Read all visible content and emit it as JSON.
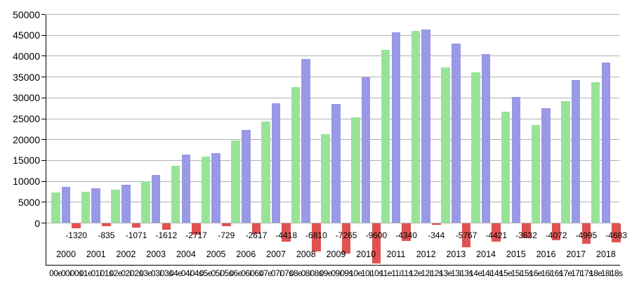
{
  "chart_data": {
    "type": "bar",
    "title": "",
    "xlabel": "",
    "ylabel": "",
    "ylim": [
      -10000,
      50000
    ],
    "grid": true,
    "legend": "none",
    "yticks": [
      0,
      5000,
      10000,
      15000,
      20000,
      25000,
      30000,
      35000,
      40000,
      45000,
      50000
    ],
    "ytick_labels": [
      "0",
      "5000",
      "10000",
      "15000",
      "20000",
      "25000",
      "30000",
      "35000",
      "40000",
      "45000",
      "50000"
    ],
    "years": [
      "2000",
      "2001",
      "2002",
      "2003",
      "2004",
      "2005",
      "2006",
      "2007",
      "2008",
      "2009",
      "2010",
      "2011",
      "2012",
      "2013",
      "2014",
      "2015",
      "2016",
      "2017",
      "2018"
    ],
    "bar_tick_labels": [
      "00e",
      "00i",
      "00s",
      "01e",
      "01i",
      "01s",
      "02e",
      "02i",
      "02s",
      "03e",
      "03i",
      "03s",
      "04e",
      "04i",
      "04s",
      "05e",
      "05i",
      "05s",
      "06e",
      "06i",
      "06s",
      "07e",
      "07i",
      "07s",
      "08e",
      "08i",
      "08s",
      "09e",
      "09i",
      "09s",
      "10e",
      "10i",
      "10s",
      "11e",
      "11i",
      "11s",
      "12e",
      "12i",
      "12s",
      "13e",
      "13i",
      "13s",
      "14e",
      "14i",
      "14s",
      "15e",
      "15i",
      "15s",
      "16e",
      "16i",
      "16s",
      "17e",
      "17i",
      "17s",
      "18e",
      "18i",
      "18s"
    ],
    "series": [
      {
        "name": "e",
        "color": "#99e399",
        "values": [
          7326,
          7451,
          8021,
          9946,
          13774,
          15979,
          19734,
          24275,
          32571,
          21304,
          25284,
          41419,
          46060,
          37232,
          36081,
          26660,
          23537,
          29240,
          33726
        ]
      },
      {
        "name": "i",
        "color": "#9999e6",
        "values": [
          8646,
          8286,
          9092,
          11558,
          16491,
          16708,
          22351,
          28693,
          39381,
          28569,
          34884,
          45759,
          46404,
          42999,
          40502,
          30292,
          27609,
          34235,
          38409
        ]
      },
      {
        "name": "s",
        "color": "#e05252",
        "values": [
          -1320,
          -835,
          -1071,
          -1612,
          -2717,
          -729,
          -2617,
          -4418,
          -6810,
          -7265,
          -9600,
          -4340,
          -344,
          -5767,
          -4421,
          -3632,
          -4072,
          -4995,
          -4683
        ]
      }
    ],
    "balance_labels": [
      "-1320",
      "-835",
      "-1071",
      "-1612",
      "-2717",
      "-729",
      "-2617",
      "-4418",
      "-6810",
      "-7265",
      "-9600",
      "-4340",
      "-344",
      "-5767",
      "-4421",
      "-3632",
      "-4072",
      "-4995",
      "-4683"
    ],
    "colors": {
      "gridline": "#b0b0b0",
      "axis": "#000000",
      "text": "#000000",
      "background": "#ffffff"
    }
  }
}
